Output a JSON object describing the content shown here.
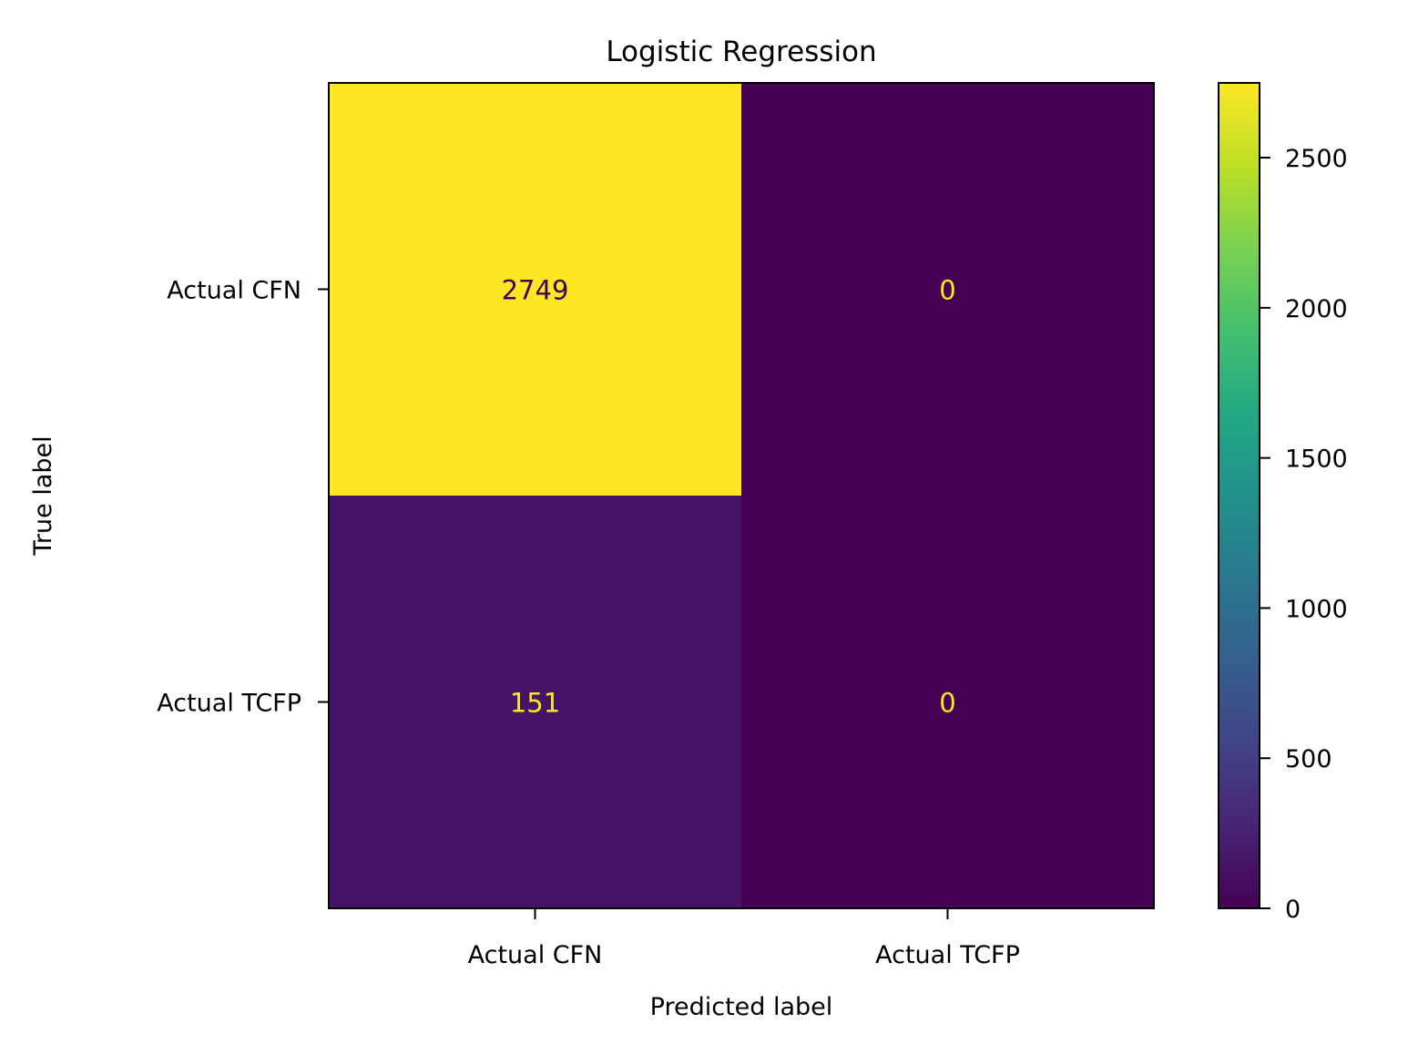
{
  "chart_data": {
    "type": "heatmap",
    "title": "Logistic Regression",
    "xlabel": "Predicted label",
    "ylabel": "True label",
    "x_categories": [
      "Actual CFN",
      "Actual TCFP"
    ],
    "y_categories": [
      "Actual CFN",
      "Actual TCFP"
    ],
    "values": [
      [
        2749,
        0
      ],
      [
        151,
        0
      ]
    ],
    "colormap": "viridis",
    "colorbar": {
      "min": 0,
      "max": 2749,
      "ticks": [
        0,
        500,
        1000,
        1500,
        2000,
        2500
      ]
    },
    "cell_text_colors": {
      "on_dark": "#fde725",
      "on_light": "#440154"
    }
  }
}
